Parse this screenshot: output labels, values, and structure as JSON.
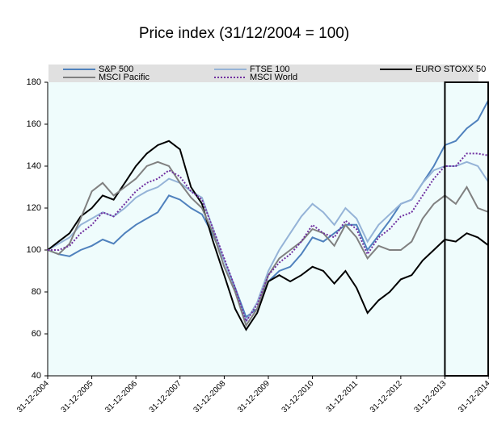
{
  "chart_data": {
    "type": "line",
    "title": "Price index (31/12/2004 = 100)",
    "x": [
      "31-12-2004",
      "31-03-2005",
      "30-06-2005",
      "30-09-2005",
      "31-12-2005",
      "31-03-2006",
      "30-06-2006",
      "30-09-2006",
      "31-12-2006",
      "31-03-2007",
      "30-06-2007",
      "30-09-2007",
      "31-12-2007",
      "31-03-2008",
      "30-06-2008",
      "30-09-2008",
      "31-12-2008",
      "31-03-2009",
      "30-06-2009",
      "30-09-2009",
      "31-12-2009",
      "31-03-2010",
      "30-06-2010",
      "30-09-2010",
      "31-12-2010",
      "31-03-2011",
      "30-06-2011",
      "30-09-2011",
      "31-12-2011",
      "31-03-2012",
      "30-06-2012",
      "30-09-2012",
      "31-12-2012",
      "31-03-2013",
      "30-06-2013",
      "30-09-2013",
      "31-12-2013",
      "31-03-2014",
      "30-06-2014",
      "30-09-2014",
      "31-12-2014"
    ],
    "series": [
      {
        "name": "S&P 500",
        "color": "#4f81bd",
        "style": "solid",
        "values": [
          100,
          98,
          97,
          100,
          102,
          105,
          103,
          108,
          112,
          115,
          118,
          126,
          124,
          120,
          117,
          107,
          95,
          82,
          68,
          72,
          85,
          90,
          92,
          98,
          106,
          104,
          108,
          112,
          112,
          100,
          107,
          114,
          122,
          124,
          132,
          140,
          150,
          152,
          158,
          162,
          172
        ]
      },
      {
        "name": "FTSE 100",
        "color": "#95b3d7",
        "style": "solid",
        "values": [
          100,
          103,
          106,
          112,
          115,
          118,
          116,
          120,
          125,
          128,
          130,
          134,
          132,
          128,
          125,
          110,
          95,
          80,
          66,
          75,
          90,
          100,
          108,
          116,
          122,
          118,
          112,
          120,
          115,
          104,
          112,
          117,
          122,
          124,
          132,
          138,
          140,
          140,
          142,
          140,
          132
        ]
      },
      {
        "name": "EURO STOXX 50",
        "color": "#000000",
        "style": "solid",
        "values": [
          100,
          104,
          108,
          116,
          120,
          126,
          124,
          132,
          140,
          146,
          150,
          152,
          148,
          130,
          122,
          104,
          88,
          72,
          62,
          70,
          85,
          88,
          85,
          88,
          92,
          90,
          84,
          90,
          82,
          70,
          76,
          80,
          86,
          88,
          95,
          100,
          105,
          104,
          108,
          106,
          102
        ]
      },
      {
        "name": "MSCI Pacific",
        "color": "#808080",
        "style": "solid",
        "values": [
          100,
          98,
          103,
          115,
          128,
          132,
          126,
          130,
          134,
          140,
          142,
          140,
          132,
          125,
          120,
          108,
          92,
          80,
          64,
          72,
          88,
          96,
          100,
          104,
          110,
          108,
          102,
          112,
          106,
          96,
          102,
          100,
          100,
          104,
          115,
          122,
          126,
          122,
          130,
          120,
          118
        ]
      },
      {
        "name": "MSCI World",
        "color": "#7030a0",
        "style": "dotted",
        "values": [
          100,
          100,
          102,
          108,
          112,
          118,
          116,
          122,
          128,
          132,
          134,
          138,
          135,
          128,
          124,
          110,
          96,
          82,
          66,
          74,
          88,
          94,
          98,
          104,
          112,
          108,
          106,
          114,
          110,
          98,
          106,
          110,
          116,
          118,
          126,
          134,
          140,
          140,
          146,
          146,
          145
        ]
      }
    ],
    "xlim": [
      "31-12-2004",
      "31-12-2014"
    ],
    "xticks": [
      "31-12-2004",
      "31-12-2005",
      "31-12-2006",
      "31-12-2007",
      "31-12-2008",
      "31-12-2009",
      "31-12-2010",
      "31-12-2011",
      "31-12-2012",
      "31-12-2013",
      "31-12-2014"
    ],
    "ylim": [
      40,
      180
    ],
    "yticks": [
      40,
      60,
      80,
      100,
      120,
      140,
      160,
      180
    ],
    "grid": false
  }
}
